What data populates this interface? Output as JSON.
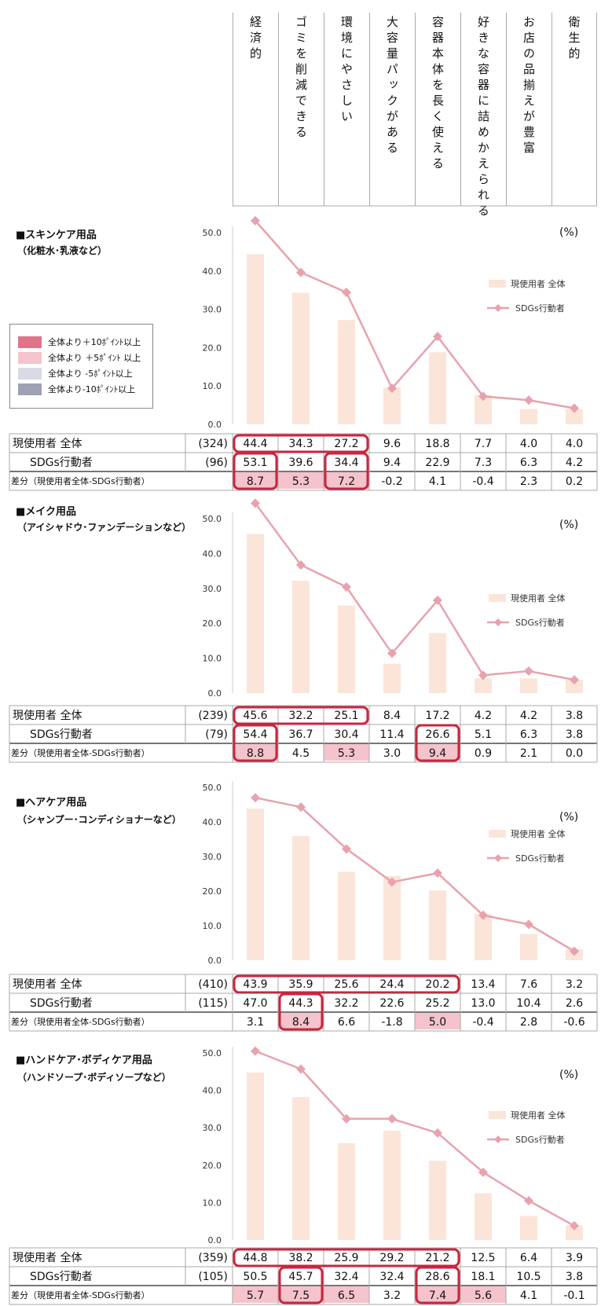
{
  "header": {
    "columns": [
      "経済的",
      "ゴミを削減できる",
      "環境にやさしい",
      "大容量パックがある",
      "容器本体を長く使える",
      "好きな容器に詰めかえられる",
      "お店の品揃えが豊富",
      "衛生的"
    ]
  },
  "legend": {
    "items": [
      {
        "label": "全体より＋10ﾎﾟｲﾝﾄ以上",
        "color": "#e0738a"
      },
      {
        "label": "全体より ＋5ﾎﾟｲﾝﾄ 以上",
        "color": "#f5c3cb"
      },
      {
        "label": "全体より -5ﾎﾟｲﾝﾄ以上",
        "color": "#d8dbe3"
      },
      {
        "label": "全体より-10ﾎﾟｲﾝﾄ以上",
        "color": "#9ea1b4"
      }
    ]
  },
  "colors": {
    "bar": "#fbe5d8",
    "line": "#e8a2ae",
    "highlight_border": "#c8253f",
    "pink_cell": "#f5c3cb"
  },
  "row_labels": {
    "all": "現使用者  全体",
    "sdgs": "SDGs行動者"
  },
  "unit": "(%)",
  "legend_series": {
    "bar": "現使用者 全体",
    "line": "SDGs行動者"
  },
  "chart_data": [
    {
      "type": "bar",
      "title": "■スキンケア用品",
      "subtitle": "（化粧水･乳液など）",
      "diff_label": "差分（現使用者全体-SDGs行動者）",
      "n_all": "(324)",
      "n_sdgs": "(96)",
      "ylim": [
        0,
        50
      ],
      "yticks": [
        "0.0",
        "10.0",
        "20.0",
        "30.0",
        "40.0",
        "50.0"
      ],
      "series": [
        {
          "name": "現使用者 全体",
          "type": "bar",
          "values": [
            44.4,
            34.3,
            27.2,
            9.6,
            18.8,
            7.7,
            4.0,
            4.0
          ]
        },
        {
          "name": "SDGs行動者",
          "type": "line",
          "values": [
            53.1,
            39.6,
            34.4,
            9.4,
            22.9,
            7.3,
            6.3,
            4.2
          ]
        }
      ],
      "diff": [
        "8.7",
        "5.3",
        "7.2",
        "-0.2",
        "4.1",
        "-0.4",
        "2.3",
        "0.2"
      ],
      "pink_diff": [
        0,
        1,
        2
      ]
    },
    {
      "type": "bar",
      "title": "■メイク用品",
      "subtitle": "（アイシャドウ･ファンデーションなど）",
      "diff_label": "差分（現使用者全体-SDGs行動者）",
      "n_all": "(239)",
      "n_sdgs": "(79)",
      "ylim": [
        0,
        50
      ],
      "yticks": [
        "0.0",
        "10.0",
        "20.0",
        "30.0",
        "40.0",
        "50.0"
      ],
      "series": [
        {
          "name": "現使用者 全体",
          "type": "bar",
          "values": [
            45.6,
            32.2,
            25.1,
            8.4,
            17.2,
            4.2,
            4.2,
            3.8
          ]
        },
        {
          "name": "SDGs行動者",
          "type": "line",
          "values": [
            54.4,
            36.7,
            30.4,
            11.4,
            26.6,
            5.1,
            6.3,
            3.8
          ]
        }
      ],
      "diff": [
        "8.8",
        "4.5",
        "5.3",
        "3.0",
        "9.4",
        "0.9",
        "2.1",
        "0.0"
      ],
      "pink_diff": [
        0,
        2,
        4
      ]
    },
    {
      "type": "bar",
      "title": "■ヘアケア用品",
      "subtitle": "（シャンプー･コンディショナーなど）",
      "diff_label": "差分（現使用者全体-SDGs行動者）",
      "n_all": "(410)",
      "n_sdgs": "(115)",
      "ylim": [
        0,
        50
      ],
      "yticks": [
        "0.0",
        "10.0",
        "20.0",
        "30.0",
        "40.0",
        "50.0"
      ],
      "series": [
        {
          "name": "現使用者 全体",
          "type": "bar",
          "values": [
            43.9,
            35.9,
            25.6,
            24.4,
            20.2,
            13.4,
            7.6,
            3.2
          ]
        },
        {
          "name": "SDGs行動者",
          "type": "line",
          "values": [
            47.0,
            44.3,
            32.2,
            22.6,
            25.2,
            13.0,
            10.4,
            2.6
          ]
        }
      ],
      "diff": [
        "3.1",
        "8.4",
        "6.6",
        "-1.8",
        "5.0",
        "-0.4",
        "2.8",
        "-0.6"
      ],
      "pink_diff": [
        1,
        4
      ]
    },
    {
      "type": "bar",
      "title": "■ハンドケア･ボディケア用品",
      "subtitle": "（ハンドソープ･ボディソープなど）",
      "diff_label": "差分（現使用者全体-SDGs行動者）",
      "n_all": "(359)",
      "n_sdgs": "(105)",
      "ylim": [
        0,
        50
      ],
      "yticks": [
        "0.0",
        "10.0",
        "20.0",
        "30.0",
        "40.0",
        "50.0"
      ],
      "series": [
        {
          "name": "現使用者 全体",
          "type": "bar",
          "values": [
            44.8,
            38.2,
            25.9,
            29.2,
            21.2,
            12.5,
            6.4,
            3.9
          ]
        },
        {
          "name": "SDGs行動者",
          "type": "line",
          "values": [
            50.5,
            45.7,
            32.4,
            32.4,
            28.6,
            18.1,
            10.5,
            3.8
          ]
        }
      ],
      "diff": [
        "5.7",
        "7.5",
        "6.5",
        "3.2",
        "7.4",
        "5.6",
        "4.1",
        "-0.1"
      ],
      "pink_diff": [
        0,
        1,
        2,
        4,
        5
      ]
    }
  ]
}
